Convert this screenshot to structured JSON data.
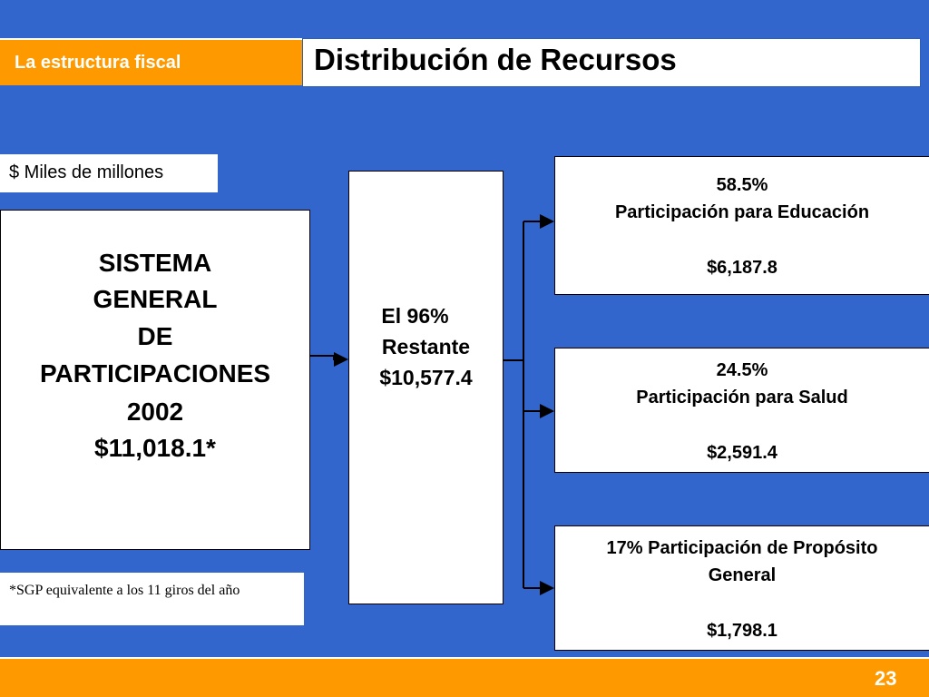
{
  "header": {
    "section_label": "La estructura fiscal",
    "title": "Distribución de Recursos"
  },
  "units_label": "$ Miles de millones",
  "source": {
    "lines": [
      "SISTEMA",
      "GENERAL",
      "DE",
      "PARTICIPACIONES",
      "2002",
      "$11,018.1*"
    ]
  },
  "remaining": {
    "lines": [
      "El 96%",
      "Restante",
      "$10,577.4"
    ]
  },
  "destinations": [
    {
      "percent_line": "58.5%",
      "name_line": "Participación para Educación",
      "amount": "$6,187.8"
    },
    {
      "percent_line": "24.5%",
      "name_line": "Participación para Salud",
      "amount": "$2,591.4"
    },
    {
      "percent_line": "17% Participación de Propósito",
      "name_line": "General",
      "amount": "$1,798.1"
    }
  ],
  "footnote": "*SGP equivalente a los 11 giros del año",
  "page_number": "23",
  "colors": {
    "background": "#3366CC",
    "accent": "#FF9900",
    "box": "#FFFFFF"
  }
}
